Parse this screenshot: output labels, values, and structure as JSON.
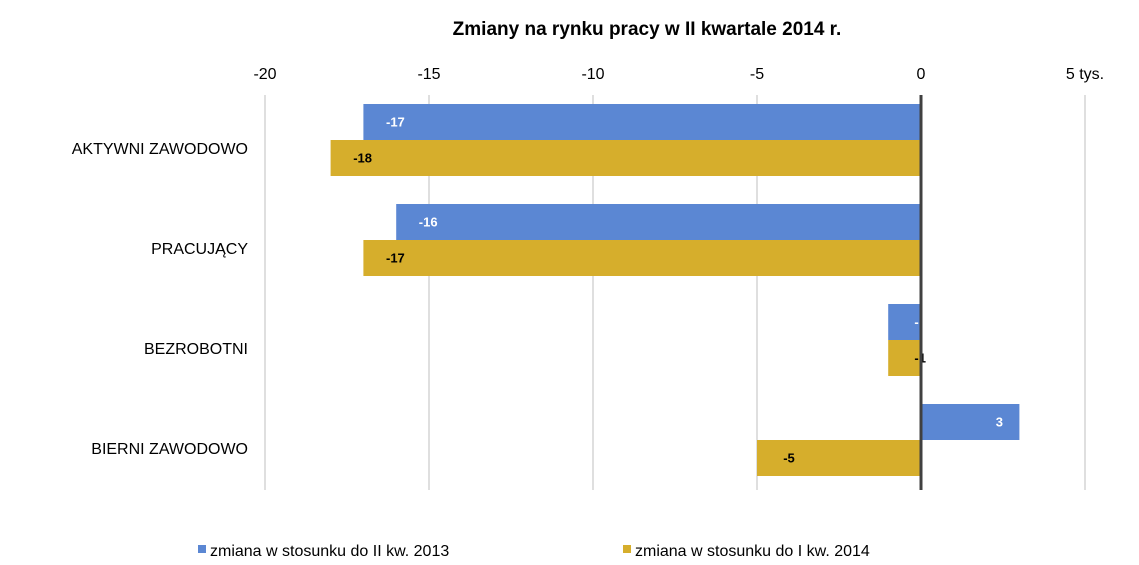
{
  "chart_data": {
    "type": "hbar",
    "title": "Zmiany na rynku pracy w II kwartale 2014 r.",
    "categories": [
      "AKTYWNI ZAWODOWO",
      "PRACUJĄCY",
      "BEZROBOTNI",
      "BIERNI ZAWODOWO"
    ],
    "series": [
      {
        "name": "zmiana w stosunku do II kw. 2013",
        "color": "#5b87d3",
        "values": [
          -17,
          -16,
          -1,
          3
        ]
      },
      {
        "name": "zmiana w stosunku do I kw. 2014",
        "color": "#d6ae2c",
        "values": [
          -18,
          -17,
          -1,
          -5
        ]
      }
    ],
    "xlim": [
      -20,
      5
    ],
    "xticks": [
      -20,
      -15,
      -10,
      -5,
      0,
      {
        "value": 5,
        "label": "5 tys."
      }
    ],
    "grid": true
  }
}
